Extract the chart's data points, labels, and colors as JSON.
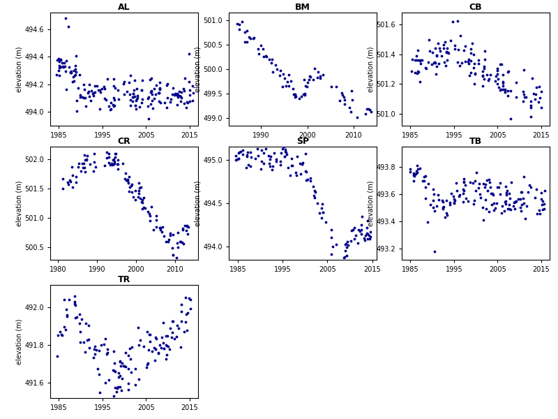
{
  "dot_color": "#00008B",
  "dot_size": 3,
  "ylabel": "elevation (m)",
  "AL": {
    "xlim": [
      1983,
      2017
    ],
    "ylim": [
      493.9,
      494.72
    ],
    "xticks": [
      1985,
      1995,
      2005,
      2015
    ],
    "yticks": [
      494.0,
      494.2,
      494.4,
      494.6
    ]
  },
  "BM": {
    "xlim": [
      1983,
      2015
    ],
    "ylim": [
      498.85,
      501.15
    ],
    "xticks": [
      1990,
      2000,
      2010
    ],
    "yticks": [
      499.0,
      499.5,
      500.0,
      500.5,
      501.0
    ]
  },
  "CB": {
    "xlim": [
      1983,
      2017
    ],
    "ylim": [
      500.92,
      501.68
    ],
    "xticks": [
      1985,
      1995,
      2005,
      2015
    ],
    "yticks": [
      501.0,
      501.2,
      501.4,
      501.6
    ]
  },
  "CR": {
    "xlim": [
      1978,
      2016
    ],
    "ylim": [
      500.28,
      502.22
    ],
    "xticks": [
      1980,
      1990,
      2000,
      2010
    ],
    "yticks": [
      500.5,
      501.0,
      501.5,
      502.0
    ]
  },
  "SP": {
    "xlim": [
      1983,
      2016
    ],
    "ylim": [
      493.85,
      495.15
    ],
    "xticks": [
      1985,
      1995,
      2005,
      2015
    ],
    "yticks": [
      494.0,
      494.5,
      495.0
    ]
  },
  "TB": {
    "xlim": [
      1983,
      2017
    ],
    "ylim": [
      493.12,
      493.95
    ],
    "xticks": [
      1985,
      1995,
      2005,
      2015
    ],
    "yticks": [
      493.2,
      493.4,
      493.6,
      493.8
    ]
  },
  "TR": {
    "xlim": [
      1983,
      2017
    ],
    "ylim": [
      491.52,
      492.12
    ],
    "xticks": [
      1985,
      1995,
      2005,
      2015
    ],
    "yticks": [
      491.6,
      491.8,
      492.0
    ]
  }
}
